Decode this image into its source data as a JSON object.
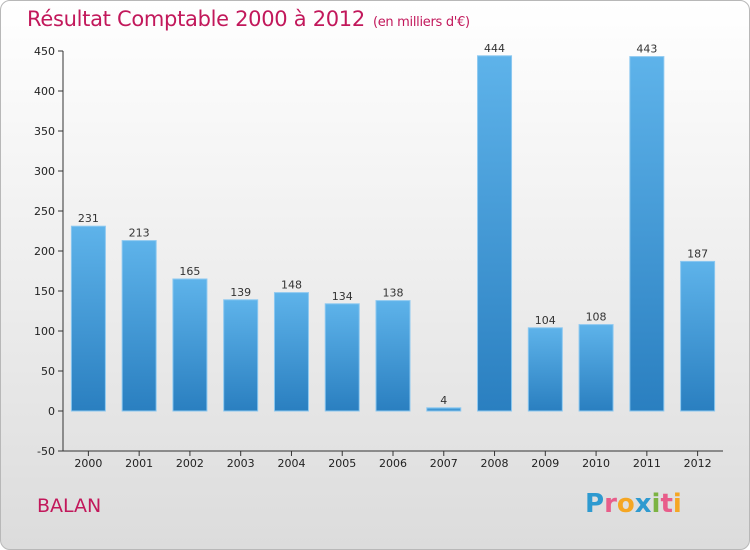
{
  "header": {
    "title": "Résultat Comptable 2000 à 2012",
    "subtitle": "(en milliers d'€)"
  },
  "footer": {
    "place": "BALAN",
    "logo_letters": [
      "P",
      "r",
      "o",
      "x",
      "i",
      "t",
      "i"
    ],
    "logo_colors": [
      "#2e9ad0",
      "#e85d8a",
      "#f5a623",
      "#2e9ad0",
      "#7cb342",
      "#e85d8a",
      "#f5a623"
    ]
  },
  "colors": {
    "bar_top": "#5eb3ea",
    "bar_bottom": "#2a7fc0",
    "title": "#c2185b"
  },
  "chart_data": {
    "type": "bar",
    "title": "Résultat Comptable 2000 à 2012",
    "xlabel": "",
    "ylabel": "",
    "categories": [
      "2000",
      "2001",
      "2002",
      "2003",
      "2004",
      "2005",
      "2006",
      "2007",
      "2008",
      "2009",
      "2010",
      "2011",
      "2012"
    ],
    "values": [
      231,
      213,
      165,
      139,
      148,
      134,
      138,
      4,
      444,
      104,
      108,
      443,
      187
    ],
    "ylim": [
      -50,
      450
    ],
    "yticks": [
      -50,
      0,
      50,
      100,
      150,
      200,
      250,
      300,
      350,
      400,
      450
    ],
    "grid": false
  }
}
